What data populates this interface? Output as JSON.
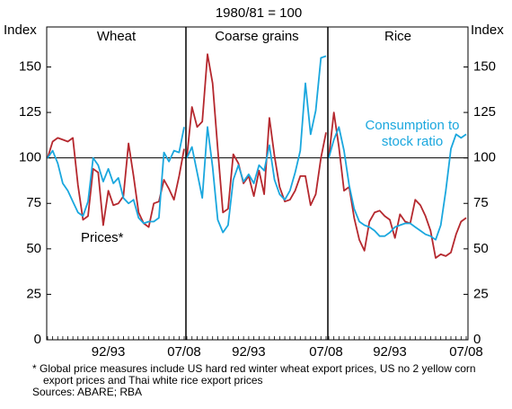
{
  "header": {
    "subtitle": "1980/81 = 100",
    "footnote": "* Global price measures include US hard red winter wheat export prices, US no 2 yellow corn export prices and Thai white rice export prices",
    "source": "Sources: ABARE; RBA"
  },
  "chart_data": [
    {
      "type": "line",
      "title": "Wheat",
      "ylabel": "Index",
      "ylim": [
        0,
        172
      ],
      "yticks": [
        0,
        25,
        50,
        75,
        100,
        125,
        150
      ],
      "baseline": 100,
      "categories": [
        null,
        null,
        null,
        null,
        null,
        null,
        null,
        null,
        null,
        null,
        null,
        null,
        "92/93",
        null,
        null,
        null,
        null,
        null,
        null,
        null,
        null,
        null,
        null,
        null,
        null,
        null,
        null,
        "07/08"
      ],
      "series": [
        {
          "name": "Prices*",
          "color": "#b5282e",
          "values": [
            100,
            109,
            111,
            110,
            109,
            111,
            85,
            66,
            68,
            94,
            92,
            63,
            82,
            74,
            75,
            79,
            108,
            90,
            70,
            64,
            62,
            75,
            76,
            88,
            83,
            77,
            90,
            105
          ]
        },
        {
          "color": "#1aa7de",
          "values": [
            100,
            104,
            97,
            86,
            82,
            76,
            70,
            68,
            76,
            100,
            96,
            87,
            94,
            86,
            89,
            78,
            75,
            77,
            67,
            64,
            65,
            65,
            67,
            103,
            98,
            104,
            103,
            117
          ]
        }
      ]
    },
    {
      "type": "line",
      "title": "Coarse grains",
      "ylim": [
        0,
        172
      ],
      "baseline": 100,
      "categories": [
        null,
        null,
        null,
        null,
        null,
        null,
        null,
        null,
        null,
        null,
        null,
        null,
        "92/93",
        null,
        null,
        null,
        null,
        null,
        null,
        null,
        null,
        null,
        null,
        null,
        null,
        null,
        null,
        "07/08"
      ],
      "series": [
        {
          "color": "#b5282e",
          "values": [
            100,
            128,
            117,
            120,
            157,
            141,
            105,
            70,
            72,
            102,
            97,
            86,
            90,
            79,
            93,
            80,
            122,
            101,
            84,
            76,
            77,
            82,
            90,
            90,
            74,
            80,
            100,
            114
          ]
        },
        {
          "color": "#1aa7de",
          "values": [
            100,
            106,
            92,
            78,
            117,
            95,
            66,
            59,
            63,
            88,
            96,
            87,
            91,
            86,
            96,
            93,
            107,
            88,
            80,
            77,
            82,
            92,
            104,
            141,
            113,
            126,
            155,
            156
          ]
        }
      ]
    },
    {
      "type": "line",
      "title": "Rice",
      "ylabel": "Index",
      "ylim": [
        0,
        172
      ],
      "yticks": [
        0,
        25,
        50,
        75,
        100,
        125,
        150
      ],
      "baseline": 100,
      "categories": [
        null,
        null,
        null,
        null,
        null,
        null,
        null,
        null,
        null,
        null,
        null,
        null,
        "92/93",
        null,
        null,
        null,
        null,
        null,
        null,
        null,
        null,
        null,
        null,
        null,
        null,
        null,
        null,
        "07/08"
      ],
      "series": [
        {
          "color": "#b5282e",
          "values": [
            100,
            125,
            106,
            82,
            84,
            67,
            55,
            49,
            65,
            70,
            71,
            68,
            66,
            56,
            69,
            65,
            64,
            77,
            74,
            68,
            60,
            45,
            47,
            46,
            48,
            58,
            65,
            67
          ]
        },
        {
          "name": "Consumption to stock ratio",
          "color": "#1aa7de",
          "values": [
            100,
            110,
            117,
            104,
            85,
            72,
            65,
            63,
            62,
            60,
            57,
            57,
            59,
            62,
            63,
            64,
            64,
            62,
            60,
            58,
            57,
            55,
            63,
            82,
            105,
            113,
            111,
            113
          ]
        }
      ]
    }
  ]
}
